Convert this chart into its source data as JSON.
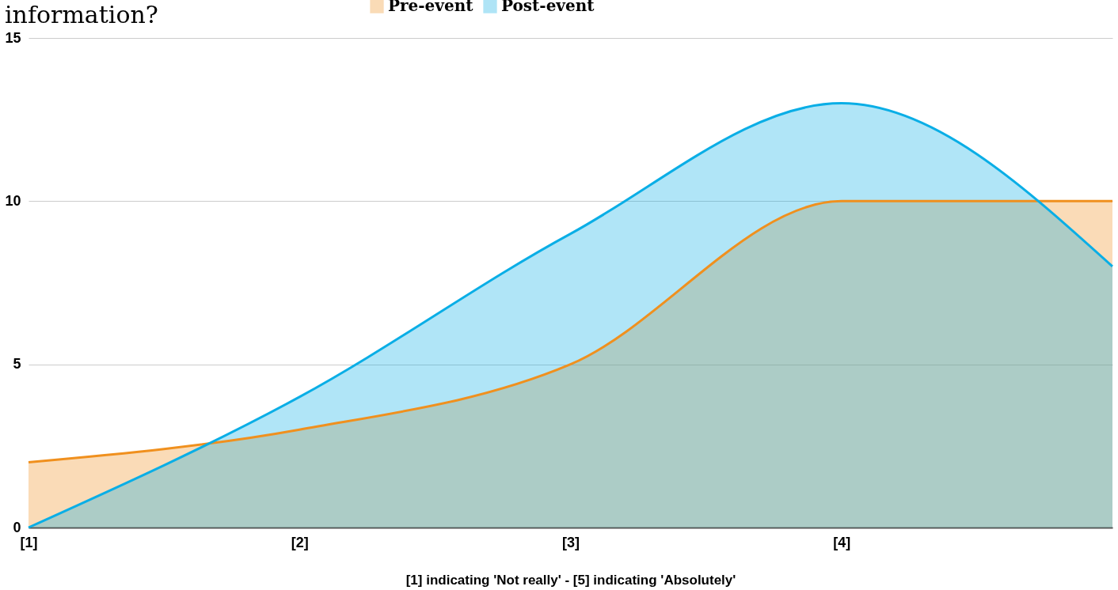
{
  "chart_data": {
    "type": "area",
    "title": "information?",
    "xlabel": "[1] indicating 'Not really' - [5] indicating 'Absolutely'",
    "categories": [
      "[1]",
      "[2]",
      "[3]",
      "[4]",
      null
    ],
    "series": [
      {
        "name": "Pre-event",
        "color": "#f0901e",
        "values": [
          2,
          3,
          5,
          10,
          10
        ]
      },
      {
        "name": "Post-event",
        "color": "#0aaee6",
        "values": [
          0,
          4,
          9,
          13,
          8
        ]
      }
    ],
    "ylim": [
      0,
      15
    ],
    "yticks": [
      0,
      5,
      10,
      15
    ],
    "grid": "y",
    "legend": "top"
  }
}
